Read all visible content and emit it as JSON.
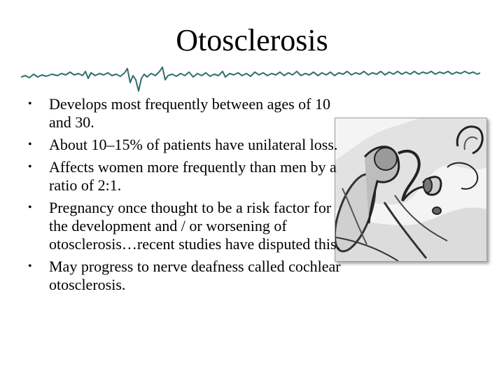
{
  "slide": {
    "title": "Otosclerosis",
    "bullets": [
      "Develops most frequently between ages of 10 and 30.",
      "About 10–15% of patients have unilateral loss.",
      "Affects women more frequently than men by a ratio of 2:1.",
      "Pregnancy once thought to be a risk factor for the development and / or worsening of otosclerosis…recent studies have disputed this.",
      "May progress to nerve deafness called cochlear otosclerosis."
    ],
    "bullet_glyph": "•",
    "accent_color": "#2f6f6a"
  }
}
